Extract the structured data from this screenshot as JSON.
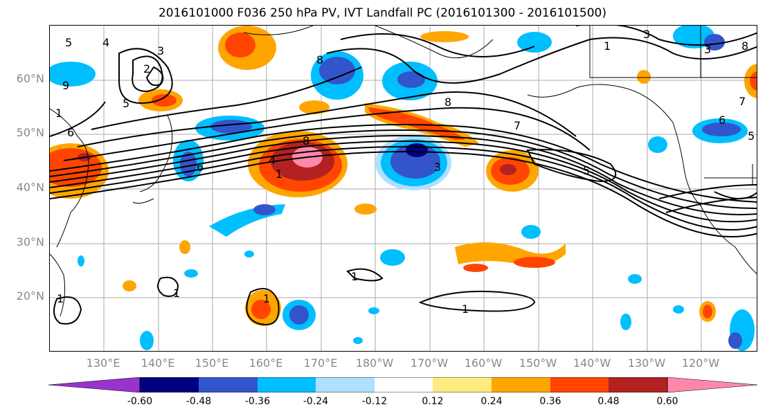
{
  "title": "2016101000 F036 250 hPa PV, IVT Landfall PC (2016101300 - 2016101500)",
  "latitude_labels": [
    "60°N",
    "50°N",
    "40°N",
    "30°N",
    "20°N"
  ],
  "longitude_labels": [
    "130°E",
    "140°E",
    "150°E",
    "160°E",
    "170°E",
    "180°W",
    "170°W",
    "160°W",
    "150°W",
    "140°W",
    "130°W",
    "120°W"
  ],
  "colorbar": {
    "colors": [
      "#9933cc",
      "#000080",
      "#3355cc",
      "#00bfff",
      "#aee0ff",
      "#ffffff",
      "#ffec80",
      "#ffa500",
      "#ff4500",
      "#b22222",
      "#ff88aa"
    ],
    "tick_labels": [
      "-0.60",
      "-0.48",
      "-0.36",
      "-0.24",
      "-0.12",
      "0.12",
      "0.24",
      "0.36",
      "0.48",
      "0.60"
    ]
  },
  "contour_labels": [
    "5",
    "4",
    "3",
    "2",
    "5",
    "6",
    "9",
    "1",
    "8",
    "3",
    "1",
    "8",
    "7",
    "5",
    "3",
    "6",
    "1",
    "1",
    "1",
    "1",
    "6",
    "8",
    "4",
    "1",
    "8",
    "1",
    "3",
    "7",
    "5"
  ]
}
